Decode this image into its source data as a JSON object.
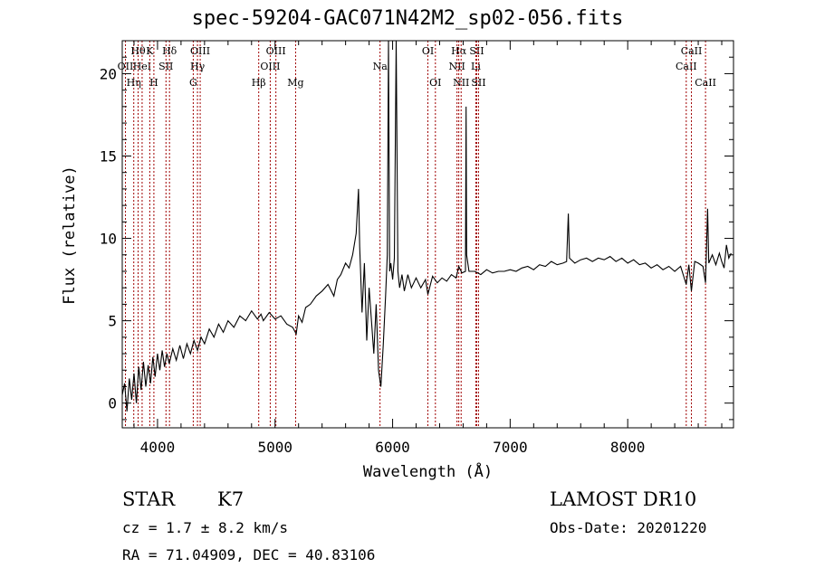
{
  "chart_data": {
    "type": "line",
    "title": "spec-59204-GAC071N42M2_sp02-056.fits",
    "xlabel": "Wavelength (Å)",
    "ylabel": "Flux (relative)",
    "xlim": [
      3700,
      8900
    ],
    "ylim": [
      -1.5,
      22
    ],
    "xticks": [
      4000,
      5000,
      6000,
      7000,
      8000
    ],
    "yticks": [
      0,
      5,
      10,
      15,
      20
    ],
    "series": [
      {
        "points": [
          [
            3700,
            0.5
          ],
          [
            3720,
            1.2
          ],
          [
            3740,
            -0.5
          ],
          [
            3760,
            1.5
          ],
          [
            3780,
            0.2
          ],
          [
            3800,
            1.8
          ],
          [
            3820,
            0.0
          ],
          [
            3840,
            2.2
          ],
          [
            3860,
            0.8
          ],
          [
            3880,
            2.5
          ],
          [
            3900,
            1.0
          ],
          [
            3920,
            2.3
          ],
          [
            3940,
            1.2
          ],
          [
            3960,
            2.8
          ],
          [
            3980,
            1.6
          ],
          [
            4000,
            3.0
          ],
          [
            4020,
            2.0
          ],
          [
            4040,
            3.2
          ],
          [
            4060,
            2.2
          ],
          [
            4080,
            3.0
          ],
          [
            4100,
            2.4
          ],
          [
            4130,
            3.3
          ],
          [
            4160,
            2.6
          ],
          [
            4190,
            3.5
          ],
          [
            4220,
            2.7
          ],
          [
            4250,
            3.6
          ],
          [
            4280,
            3.0
          ],
          [
            4310,
            3.8
          ],
          [
            4340,
            3.2
          ],
          [
            4370,
            4.0
          ],
          [
            4400,
            3.6
          ],
          [
            4440,
            4.5
          ],
          [
            4480,
            4.0
          ],
          [
            4520,
            4.8
          ],
          [
            4560,
            4.3
          ],
          [
            4600,
            5.0
          ],
          [
            4650,
            4.6
          ],
          [
            4700,
            5.3
          ],
          [
            4750,
            5.0
          ],
          [
            4800,
            5.6
          ],
          [
            4850,
            5.1
          ],
          [
            4880,
            5.4
          ],
          [
            4900,
            5.0
          ],
          [
            4950,
            5.5
          ],
          [
            5000,
            5.1
          ],
          [
            5050,
            5.3
          ],
          [
            5100,
            4.8
          ],
          [
            5150,
            4.6
          ],
          [
            5180,
            4.2
          ],
          [
            5200,
            5.3
          ],
          [
            5230,
            4.9
          ],
          [
            5260,
            5.8
          ],
          [
            5300,
            6.0
          ],
          [
            5350,
            6.5
          ],
          [
            5400,
            6.8
          ],
          [
            5450,
            7.2
          ],
          [
            5500,
            6.5
          ],
          [
            5530,
            7.5
          ],
          [
            5560,
            7.8
          ],
          [
            5600,
            8.5
          ],
          [
            5630,
            8.2
          ],
          [
            5660,
            9.0
          ],
          [
            5690,
            10.3
          ],
          [
            5710,
            13.0
          ],
          [
            5720,
            9.5
          ],
          [
            5740,
            5.5
          ],
          [
            5760,
            8.5
          ],
          [
            5780,
            3.8
          ],
          [
            5800,
            7.0
          ],
          [
            5820,
            5.0
          ],
          [
            5840,
            3.0
          ],
          [
            5860,
            6.0
          ],
          [
            5880,
            2.0
          ],
          [
            5900,
            1.0
          ],
          [
            5920,
            3.5
          ],
          [
            5940,
            6.5
          ],
          [
            5955,
            9.0
          ],
          [
            5965,
            22.0
          ],
          [
            5975,
            8.0
          ],
          [
            5985,
            8.5
          ],
          [
            6000,
            7.5
          ],
          [
            6015,
            8.8
          ],
          [
            6030,
            22.0
          ],
          [
            6045,
            8.0
          ],
          [
            6060,
            7.0
          ],
          [
            6080,
            7.8
          ],
          [
            6100,
            6.8
          ],
          [
            6130,
            7.8
          ],
          [
            6160,
            7.0
          ],
          [
            6200,
            7.6
          ],
          [
            6240,
            7.0
          ],
          [
            6280,
            7.5
          ],
          [
            6300,
            6.6
          ],
          [
            6340,
            7.7
          ],
          [
            6380,
            7.3
          ],
          [
            6420,
            7.6
          ],
          [
            6460,
            7.4
          ],
          [
            6500,
            7.8
          ],
          [
            6540,
            7.6
          ],
          [
            6563,
            8.3
          ],
          [
            6590,
            7.9
          ],
          [
            6620,
            8.0
          ],
          [
            6625,
            18.0
          ],
          [
            6630,
            9.0
          ],
          [
            6650,
            8.0
          ],
          [
            6700,
            8.0
          ],
          [
            6750,
            7.8
          ],
          [
            6800,
            8.1
          ],
          [
            6850,
            7.9
          ],
          [
            6900,
            8.0
          ],
          [
            6950,
            8.0
          ],
          [
            7000,
            8.1
          ],
          [
            7050,
            8.0
          ],
          [
            7100,
            8.2
          ],
          [
            7150,
            8.3
          ],
          [
            7200,
            8.1
          ],
          [
            7250,
            8.4
          ],
          [
            7300,
            8.3
          ],
          [
            7350,
            8.6
          ],
          [
            7400,
            8.4
          ],
          [
            7450,
            8.5
          ],
          [
            7480,
            8.6
          ],
          [
            7495,
            11.5
          ],
          [
            7505,
            8.8
          ],
          [
            7550,
            8.5
          ],
          [
            7600,
            8.7
          ],
          [
            7650,
            8.8
          ],
          [
            7700,
            8.6
          ],
          [
            7750,
            8.8
          ],
          [
            7800,
            8.7
          ],
          [
            7850,
            8.9
          ],
          [
            7900,
            8.6
          ],
          [
            7950,
            8.8
          ],
          [
            8000,
            8.5
          ],
          [
            8050,
            8.7
          ],
          [
            8100,
            8.4
          ],
          [
            8150,
            8.5
          ],
          [
            8200,
            8.2
          ],
          [
            8250,
            8.4
          ],
          [
            8300,
            8.1
          ],
          [
            8350,
            8.3
          ],
          [
            8400,
            8.0
          ],
          [
            8450,
            8.3
          ],
          [
            8498,
            7.2
          ],
          [
            8520,
            8.4
          ],
          [
            8542,
            6.8
          ],
          [
            8570,
            8.6
          ],
          [
            8600,
            8.5
          ],
          [
            8640,
            8.3
          ],
          [
            8662,
            7.3
          ],
          [
            8680,
            11.8
          ],
          [
            8690,
            8.5
          ],
          [
            8720,
            9.0
          ],
          [
            8750,
            8.4
          ],
          [
            8780,
            9.1
          ],
          [
            8800,
            8.6
          ],
          [
            8820,
            8.2
          ],
          [
            8840,
            9.6
          ],
          [
            8860,
            8.8
          ],
          [
            8880,
            9.1
          ]
        ]
      }
    ],
    "line_markers": [
      {
        "wl": 3727,
        "label": "OII",
        "row": 2
      },
      {
        "wl": 3798,
        "label": "Hη",
        "row": 3
      },
      {
        "wl": 3835,
        "label": "Hθ",
        "row": 1
      },
      {
        "wl": 3869,
        "label": "HeI",
        "row": 2
      },
      {
        "wl": 3934,
        "label": "K",
        "row": 1
      },
      {
        "wl": 3969,
        "label": "H",
        "row": 3
      },
      {
        "wl": 4072,
        "label": "SII",
        "row": 2
      },
      {
        "wl": 4102,
        "label": "Hδ",
        "row": 1
      },
      {
        "wl": 4304,
        "label": "G",
        "row": 3
      },
      {
        "wl": 4340,
        "label": "Hγ",
        "row": 2
      },
      {
        "wl": 4363,
        "label": "OIII",
        "row": 1
      },
      {
        "wl": 4861,
        "label": "Hβ",
        "row": 3
      },
      {
        "wl": 4959,
        "label": "OIII",
        "row": 2
      },
      {
        "wl": 5007,
        "label": "OIII",
        "row": 1
      },
      {
        "wl": 5175,
        "label": "Mg",
        "row": 3
      },
      {
        "wl": 5893,
        "label": "Na",
        "row": 2
      },
      {
        "wl": 6300,
        "label": "OI",
        "row": 1
      },
      {
        "wl": 6364,
        "label": "OI",
        "row": 3
      },
      {
        "wl": 6548,
        "label": "NII",
        "row": 2
      },
      {
        "wl": 6563,
        "label": "Hα",
        "row": 1
      },
      {
        "wl": 6583,
        "label": "NII",
        "row": 3
      },
      {
        "wl": 6708,
        "label": "Li",
        "row": 2
      },
      {
        "wl": 6716,
        "label": "SII",
        "row": 1
      },
      {
        "wl": 6731,
        "label": "SII",
        "row": 3
      },
      {
        "wl": 8498,
        "label": "CaII",
        "row": 2
      },
      {
        "wl": 8542,
        "label": "CaII",
        "row": 1
      },
      {
        "wl": 8662,
        "label": "CaII",
        "row": 3
      }
    ]
  },
  "info": {
    "object_class": "STAR",
    "subclass": "K7",
    "survey": "LAMOST DR10",
    "cz": "cz = 1.7 ± 8.2 km/s",
    "obs_date": "Obs-Date: 20201220",
    "coords": "RA =  71.04909, DEC =  40.83106"
  }
}
